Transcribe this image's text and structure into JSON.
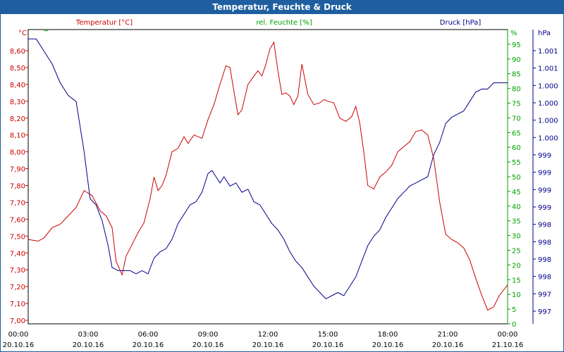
{
  "window": {
    "title": "Temperatur, Feuchte & Druck"
  },
  "colors": {
    "temperature": "#cc0000",
    "humidity": "#00a000",
    "pressure": "#00008b",
    "frame": "#1f5f9f"
  },
  "chart_data": {
    "type": "line",
    "title": "Temperatur, Feuchte & Druck",
    "grid": true,
    "x_ticks": [
      {
        "time": "00:00",
        "date": "20.10.16"
      },
      {
        "time": "03:00",
        "date": "20.10.16"
      },
      {
        "time": "06:00",
        "date": "20.10.16"
      },
      {
        "time": "09:00",
        "date": "20.10.16"
      },
      {
        "time": "12:00",
        "date": "20.10.16"
      },
      {
        "time": "15:00",
        "date": "20.10.16"
      },
      {
        "time": "18:00",
        "date": "20.10.16"
      },
      {
        "time": "21:00",
        "date": "20.10.16"
      },
      {
        "time": "00:00",
        "date": "21.10.16"
      }
    ],
    "axes": {
      "temperature": {
        "unit": "°C",
        "label": "Temperatur [°C]",
        "range": [
          7.0,
          8.7
        ],
        "ticks": [
          "8,60",
          "8,50",
          "8,40",
          "8,30",
          "8,20",
          "8,10",
          "8,00",
          "7,90",
          "7,80",
          "7,70",
          "7,60",
          "7,50",
          "7,40",
          "7,30",
          "7,20",
          "7,10",
          "7,00"
        ]
      },
      "humidity": {
        "unit": "%",
        "label": "rel. Feuchte [%]",
        "range": [
          0,
          100
        ],
        "ticks": [
          "95",
          "90",
          "85",
          "80",
          "75",
          "70",
          "65",
          "60",
          "55",
          "50",
          "45",
          "40",
          "35",
          "30",
          "25",
          "20",
          "15",
          "10",
          "5",
          "0"
        ]
      },
      "pressure": {
        "unit": "hPa",
        "label": "Druck [hPa]",
        "range": [
          996.85,
          1001.55
        ],
        "ticks": [
          "1.001",
          "1.001",
          "1.000",
          "1.000",
          "1.000",
          "1.000",
          "999",
          "999",
          "999",
          "999",
          "998",
          "998",
          "998",
          "998",
          "997",
          "997"
        ]
      }
    },
    "series": [
      {
        "name": "Temperatur [°C]",
        "axis": "temperature",
        "x_hours": [
          0,
          0.5,
          0.8,
          1.2,
          1.6,
          2.0,
          2.4,
          2.8,
          3.2,
          3.6,
          3.9,
          4.2,
          4.4,
          4.7,
          4.9,
          5.2,
          5.5,
          5.8,
          6.1,
          6.3,
          6.5,
          6.7,
          6.9,
          7.2,
          7.5,
          7.8,
          8.0,
          8.3,
          8.7,
          9.0,
          9.3,
          9.6,
          9.9,
          10.1,
          10.3,
          10.5,
          10.7,
          11.0,
          11.3,
          11.5,
          11.7,
          11.9,
          12.1,
          12.3,
          12.5,
          12.7,
          12.9,
          13.1,
          13.3,
          13.5,
          13.7,
          14.0,
          14.3,
          14.6,
          14.8,
          15.0,
          15.3,
          15.6,
          15.9,
          16.2,
          16.4,
          16.6,
          16.8,
          17.0,
          17.3,
          17.6,
          17.9,
          18.2,
          18.5,
          18.8,
          19.1,
          19.4,
          19.7,
          20.0,
          20.3,
          20.6,
          20.9,
          21.2,
          21.5,
          21.8,
          22.1,
          22.4,
          22.7,
          23.0,
          23.3,
          23.6,
          24.0
        ],
        "values": [
          7.48,
          7.47,
          7.49,
          7.55,
          7.57,
          7.62,
          7.67,
          7.77,
          7.74,
          7.65,
          7.62,
          7.55,
          7.35,
          7.27,
          7.38,
          7.45,
          7.52,
          7.58,
          7.72,
          7.85,
          7.77,
          7.8,
          7.86,
          8.0,
          8.02,
          8.09,
          8.05,
          8.1,
          8.08,
          8.19,
          8.28,
          8.4,
          8.51,
          8.5,
          8.36,
          8.22,
          8.25,
          8.4,
          8.45,
          8.48,
          8.45,
          8.52,
          8.61,
          8.65,
          8.48,
          8.34,
          8.35,
          8.33,
          8.28,
          8.33,
          8.52,
          8.34,
          8.28,
          8.29,
          8.31,
          8.3,
          8.29,
          8.2,
          8.18,
          8.21,
          8.27,
          8.17,
          8.0,
          7.8,
          7.78,
          7.85,
          7.88,
          7.92,
          8.0,
          8.03,
          8.06,
          8.12,
          8.13,
          8.1,
          7.96,
          7.7,
          7.51,
          7.48,
          7.46,
          7.43,
          7.36,
          7.25,
          7.15,
          7.06,
          7.08,
          7.15,
          7.21
        ]
      },
      {
        "name": "Druck [hPa]",
        "axis": "pressure",
        "x_hours": [
          0,
          0.4,
          0.8,
          1.2,
          1.6,
          2.0,
          2.4,
          2.8,
          3.1,
          3.4,
          3.7,
          4.0,
          4.2,
          4.5,
          4.8,
          5.1,
          5.4,
          5.7,
          6.0,
          6.3,
          6.6,
          6.9,
          7.2,
          7.5,
          7.8,
          8.1,
          8.4,
          8.7,
          9.0,
          9.2,
          9.4,
          9.6,
          9.8,
          10.1,
          10.4,
          10.7,
          11.0,
          11.3,
          11.6,
          11.9,
          12.2,
          12.5,
          12.8,
          13.1,
          13.4,
          13.7,
          14.0,
          14.3,
          14.6,
          14.9,
          15.2,
          15.5,
          15.8,
          16.1,
          16.4,
          16.7,
          17.0,
          17.3,
          17.6,
          17.9,
          18.2,
          18.5,
          18.8,
          19.1,
          19.4,
          19.7,
          20.0,
          20.3,
          20.6,
          20.9,
          21.2,
          21.5,
          21.8,
          22.1,
          22.4,
          22.7,
          23.0,
          23.3,
          23.6,
          24.0
        ],
        "values": [
          1001.4,
          1001.4,
          1001.2,
          1001.0,
          1000.7,
          1000.5,
          1000.4,
          999.6,
          998.85,
          998.75,
          998.5,
          998.1,
          997.75,
          997.7,
          997.7,
          997.7,
          997.65,
          997.7,
          997.65,
          997.9,
          998.0,
          998.05,
          998.2,
          998.45,
          998.6,
          998.75,
          998.8,
          998.95,
          999.25,
          999.3,
          999.2,
          999.1,
          999.2,
          999.05,
          999.1,
          998.95,
          999.0,
          998.8,
          998.75,
          998.6,
          998.45,
          998.35,
          998.2,
          998.0,
          997.85,
          997.75,
          997.6,
          997.45,
          997.35,
          997.25,
          997.3,
          997.35,
          997.3,
          997.45,
          997.6,
          997.85,
          998.1,
          998.25,
          998.35,
          998.55,
          998.7,
          998.85,
          998.95,
          999.05,
          999.1,
          999.15,
          999.2,
          999.55,
          999.75,
          1000.05,
          1000.15,
          1000.2,
          1000.25,
          1000.4,
          1000.55,
          1000.6,
          1000.6,
          1000.7,
          1000.7,
          1000.7
        ]
      },
      {
        "name": "rel. Feuchte [%]",
        "axis": "humidity",
        "x_hours": [
          0.8,
          1.0
        ],
        "values": [
          99.6,
          99.6
        ]
      }
    ]
  }
}
